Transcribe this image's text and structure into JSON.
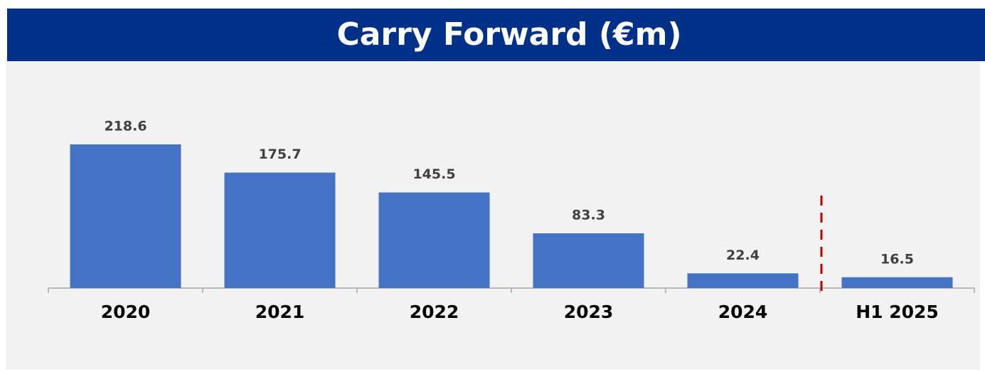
{
  "chart_data": {
    "type": "bar",
    "title": "Carry Forward (€m)",
    "categories": [
      "2020",
      "2021",
      "2022",
      "2023",
      "2024",
      "H1 2025"
    ],
    "values": [
      218.6,
      175.7,
      145.5,
      83.3,
      22.4,
      16.5
    ],
    "color": "#4472c4"
  }
}
